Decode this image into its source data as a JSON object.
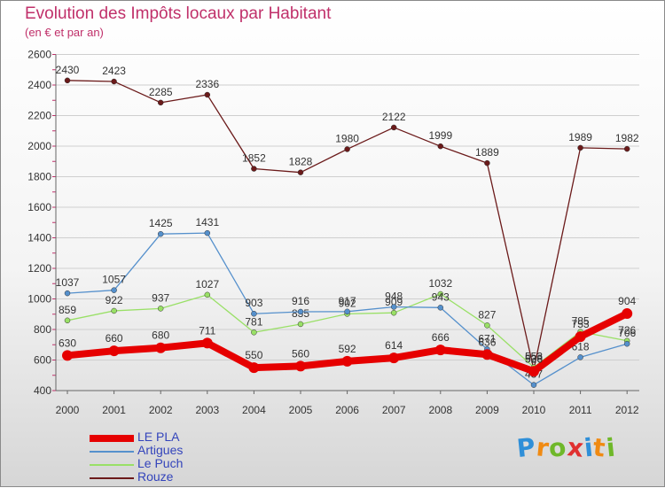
{
  "chart_data": {
    "type": "line",
    "title": "Evolution des Impôts locaux par Habitant",
    "subtitle": "(en € et par an)",
    "xlabel": "",
    "ylabel": "",
    "ylim": [
      400,
      2600
    ],
    "yticks": [
      400,
      600,
      800,
      1000,
      1200,
      1400,
      1600,
      1800,
      2000,
      2200,
      2400,
      2600
    ],
    "grid": true,
    "legend_position": "bottom-left",
    "categories": [
      "2000",
      "2001",
      "2002",
      "2003",
      "2004",
      "2005",
      "2006",
      "2007",
      "2008",
      "2009",
      "2010",
      "2011",
      "2012"
    ],
    "series": [
      {
        "name": "Rouze",
        "color": "#6b1a1a",
        "values": [
          2430,
          2423,
          2285,
          2336,
          1852,
          1828,
          1980,
          2122,
          1999,
          1889,
          538,
          1989,
          1982
        ]
      },
      {
        "name": "Le Puch",
        "color": "#99e066",
        "values": [
          859,
          922,
          937,
          1027,
          781,
          835,
          902,
          909,
          1032,
          827,
          553,
          785,
          726
        ]
      },
      {
        "name": "Artigues",
        "color": "#5590cc",
        "values": [
          1037,
          1057,
          1425,
          1431,
          903,
          916,
          917,
          948,
          943,
          671,
          437,
          618,
          706
        ]
      },
      {
        "name": "LE PLA",
        "color": "#e60000",
        "values": [
          630,
          660,
          680,
          711,
          550,
          560,
          592,
          614,
          666,
          636,
          526,
          753,
          904
        ]
      }
    ],
    "legend_order": [
      "LE PLA",
      "Artigues",
      "Le Puch",
      "Rouze"
    ]
  },
  "brand": {
    "letters": [
      "P",
      "r",
      "o",
      "x",
      "i",
      "t",
      "i"
    ],
    "colors": [
      "#2f8fd8",
      "#f08a12",
      "#6fb82a",
      "#e03030",
      "#2f8fd8",
      "#f08a12",
      "#6fb82a"
    ]
  }
}
